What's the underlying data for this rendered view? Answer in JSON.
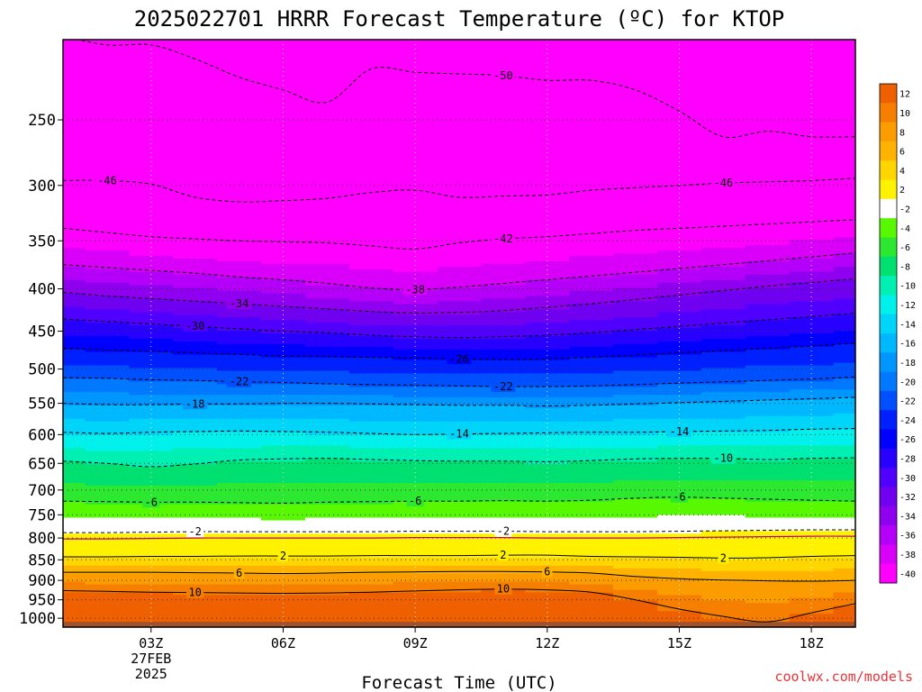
{
  "title": "2025022701 HRRR Forecast Temperature (ºC) for KTOP",
  "credit": "coolwx.com/models",
  "chart_data": {
    "type": "heatmap",
    "xlabel": "Forecast Time (UTC)",
    "ylabel": "",
    "x_ticks": [
      {
        "hour": 3,
        "label": "03Z",
        "sub": [
          "27FEB",
          "2025"
        ]
      },
      {
        "hour": 6,
        "label": "06Z"
      },
      {
        "hour": 9,
        "label": "09Z"
      },
      {
        "hour": 12,
        "label": "12Z"
      },
      {
        "hour": 15,
        "label": "15Z"
      },
      {
        "hour": 18,
        "label": "18Z"
      }
    ],
    "xlim": [
      1,
      19
    ],
    "y_ticks": [
      250,
      300,
      350,
      400,
      450,
      500,
      550,
      600,
      650,
      700,
      750,
      800,
      850,
      900,
      950,
      1000
    ],
    "ylim_hpa": [
      1025,
      200
    ],
    "y_scale": "log",
    "contour_levels": [
      {
        "level": -50,
        "press": [
          198,
          203,
          203,
          211,
          222,
          230,
          238,
          217,
          219,
          220,
          221,
          224,
          224,
          230,
          244,
          262,
          258,
          262,
          262
        ],
        "labels": [
          {
            "hour": 11,
            "text": "-50"
          }
        ]
      },
      {
        "level": -46,
        "press": [
          296,
          296,
          299,
          310,
          314,
          313,
          311,
          306,
          304,
          310,
          309,
          308,
          304,
          302,
          300,
          298,
          297,
          296,
          294
        ],
        "labels": [
          {
            "hour": 2,
            "text": "-46"
          },
          {
            "hour": 16,
            "text": "-46"
          }
        ]
      },
      {
        "level": -42,
        "press": [
          338,
          342,
          346,
          348,
          350,
          351,
          352,
          355,
          358,
          352,
          348,
          346,
          343,
          340,
          338,
          336,
          334,
          332,
          330
        ],
        "labels": [
          {
            "hour": 11,
            "text": "-42"
          }
        ]
      },
      {
        "level": -38,
        "press": [
          374,
          377,
          380,
          383,
          387,
          390,
          394,
          399,
          401,
          398,
          394,
          390,
          386,
          382,
          378,
          374,
          370,
          366,
          362
        ],
        "labels": [
          {
            "hour": 9,
            "text": "-38"
          }
        ]
      },
      {
        "level": -34,
        "press": [
          404,
          408,
          411,
          414,
          417,
          420,
          423,
          426,
          428,
          427,
          425,
          421,
          417,
          412,
          407,
          402,
          397,
          393,
          389
        ],
        "labels": [
          {
            "hour": 5,
            "text": "-34"
          }
        ]
      },
      {
        "level": -30,
        "press": [
          435,
          438,
          441,
          444,
          447,
          450,
          452,
          455,
          457,
          458,
          457,
          455,
          452,
          448,
          444,
          440,
          436,
          432,
          428
        ],
        "labels": [
          {
            "hour": 4,
            "text": "-30"
          }
        ]
      },
      {
        "level": -26,
        "press": [
          472,
          474,
          476,
          478,
          480,
          482,
          483,
          484,
          485,
          486,
          487,
          486,
          484,
          481,
          478,
          475,
          472,
          469,
          465
        ],
        "labels": [
          {
            "hour": 10,
            "text": "-26"
          }
        ]
      },
      {
        "level": -22,
        "press": [
          512,
          513,
          515,
          516,
          518,
          519,
          521,
          522,
          523,
          524,
          525,
          525,
          524,
          522,
          520,
          518,
          516,
          514,
          511
        ],
        "labels": [
          {
            "hour": 5,
            "text": "-22"
          },
          {
            "hour": 11,
            "text": "-22"
          }
        ]
      },
      {
        "level": -18,
        "press": [
          550,
          552,
          552,
          551,
          551,
          550,
          550,
          551,
          552,
          553,
          553,
          554,
          553,
          551,
          549,
          547,
          545,
          543,
          541
        ],
        "labels": [
          {
            "hour": 4,
            "text": "-18"
          }
        ]
      },
      {
        "level": -14,
        "press": [
          596,
          598,
          596,
          595,
          594,
          595,
          596,
          598,
          600,
          599,
          598,
          597,
          596,
          596,
          595,
          594,
          593,
          591,
          590
        ],
        "labels": [
          {
            "hour": 10,
            "text": "-14"
          },
          {
            "hour": 15,
            "text": "-14"
          }
        ]
      },
      {
        "level": -10,
        "press": [
          646,
          650,
          656,
          651,
          644,
          642,
          641,
          643,
          645,
          646,
          646,
          647,
          645,
          642,
          641,
          641,
          643,
          641,
          640
        ],
        "labels": [
          {
            "hour": 16,
            "text": "-10"
          }
        ]
      },
      {
        "level": -6,
        "press": [
          722,
          723,
          724,
          724,
          725,
          726,
          724,
          723,
          722,
          722,
          721,
          722,
          720,
          716,
          714,
          716,
          718,
          720,
          722
        ],
        "labels": [
          {
            "hour": 3,
            "text": "-6"
          },
          {
            "hour": 9,
            "text": "-6"
          },
          {
            "hour": 15,
            "text": "-6"
          }
        ]
      },
      {
        "level": -2,
        "press": [
          788,
          788,
          787,
          786,
          786,
          786,
          786,
          786,
          785,
          785,
          785,
          786,
          786,
          786,
          785,
          784,
          783,
          782,
          782
        ],
        "labels": [
          {
            "hour": 4,
            "text": "-2"
          },
          {
            "hour": 11,
            "text": "-2"
          }
        ]
      },
      {
        "level": 2,
        "press": [
          843,
          843,
          842,
          842,
          841,
          841,
          841,
          840,
          840,
          840,
          839,
          839,
          842,
          843,
          844,
          846,
          845,
          842,
          840
        ],
        "labels": [
          {
            "hour": 6,
            "text": "2"
          },
          {
            "hour": 11,
            "text": "2"
          },
          {
            "hour": 16,
            "text": "2"
          }
        ]
      },
      {
        "level": 6,
        "press": [
          880,
          880,
          880,
          881,
          882,
          883,
          882,
          880,
          879,
          878,
          878,
          879,
          882,
          890,
          896,
          899,
          901,
          902,
          900
        ],
        "labels": [
          {
            "hour": 5,
            "text": "6"
          },
          {
            "hour": 12,
            "text": "6"
          }
        ]
      },
      {
        "level": 10,
        "press": [
          926,
          928,
          930,
          931,
          932,
          933,
          932,
          930,
          927,
          924,
          922,
          924,
          930,
          950,
          975,
          995,
          1010,
          985,
          960
        ],
        "labels": [
          {
            "hour": 4,
            "text": "10"
          },
          {
            "hour": 11,
            "text": "10"
          }
        ]
      }
    ],
    "colorbar": {
      "levels": [
        12,
        10,
        8,
        6,
        4,
        2,
        -2,
        -4,
        -6,
        -8,
        -10,
        -12,
        -14,
        -16,
        -18,
        -20,
        -22,
        -24,
        -26,
        -28,
        -30,
        -32,
        -34,
        -36,
        -38,
        -40
      ],
      "colors": [
        "#ee6000",
        "#f67f00",
        "#fb9c00",
        "#ffb300",
        "#ffd600",
        "#fff200",
        "#ffffff",
        "#58f800",
        "#2ce830",
        "#00e070",
        "#00f0b4",
        "#00f0ec",
        "#00d4f8",
        "#00b8ff",
        "#0096ff",
        "#0078ff",
        "#0050ff",
        "#0020ff",
        "#0000ff",
        "#2800ff",
        "#5000ff",
        "#7000f0",
        "#9000f0",
        "#b400f8",
        "#d800f8",
        "#ff00ff"
      ]
    }
  }
}
